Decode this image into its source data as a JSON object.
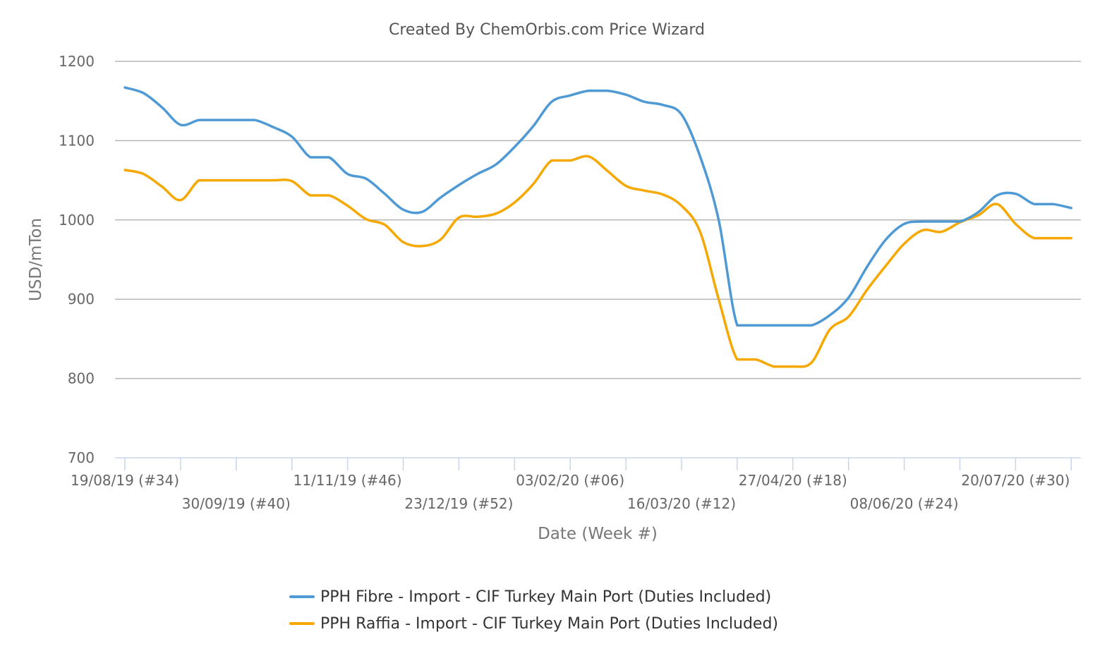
{
  "chart_data": {
    "type": "line",
    "title": "Created By ChemOrbis.com Price Wizard",
    "xlabel": "Date (Week #)",
    "ylabel": "USD/mTon",
    "ylim": [
      700,
      1200
    ],
    "yticks": [
      700,
      800,
      900,
      1000,
      1100,
      1200
    ],
    "grid": true,
    "legend_position": "bottom-center",
    "x_start_week_label": "19/08/19 (#34)",
    "x_labels": [
      {
        "week": 0,
        "label": "19/08/19 (#34)",
        "row": 1
      },
      {
        "week": 6,
        "label": "30/09/19 (#40)",
        "row": 2
      },
      {
        "week": 12,
        "label": "11/11/19 (#46)",
        "row": 1
      },
      {
        "week": 18,
        "label": "23/12/19 (#52)",
        "row": 2
      },
      {
        "week": 24,
        "label": "03/02/20 (#06)",
        "row": 1
      },
      {
        "week": 30,
        "label": "16/03/20 (#12)",
        "row": 2
      },
      {
        "week": 36,
        "label": "27/04/20 (#18)",
        "row": 1
      },
      {
        "week": 42,
        "label": "08/06/20 (#24)",
        "row": 2
      },
      {
        "week": 48,
        "label": "20/07/20 (#30)",
        "row": 1
      }
    ],
    "x_ticks": [
      0,
      3,
      6,
      9,
      12,
      15,
      18,
      21,
      24,
      27,
      30,
      33,
      36,
      39,
      42,
      45,
      48,
      51
    ],
    "x_max": 51.5,
    "series": [
      {
        "name": "PPH Fibre - Import - CIF Turkey Main Port (Duties Included)",
        "color": "#4f9ad4",
        "points": [
          [
            0,
            1167
          ],
          [
            1,
            1160
          ],
          [
            2,
            1142
          ],
          [
            3,
            1120
          ],
          [
            4,
            1126
          ],
          [
            5,
            1126
          ],
          [
            6,
            1126
          ],
          [
            7,
            1126
          ],
          [
            8,
            1117
          ],
          [
            9,
            1105
          ],
          [
            10,
            1079
          ],
          [
            11,
            1079
          ],
          [
            12,
            1058
          ],
          [
            13,
            1052
          ],
          [
            14,
            1033
          ],
          [
            15,
            1013
          ],
          [
            16,
            1010
          ],
          [
            17,
            1028
          ],
          [
            18,
            1044
          ],
          [
            19,
            1058
          ],
          [
            20,
            1070
          ],
          [
            21,
            1092
          ],
          [
            22,
            1118
          ],
          [
            23,
            1149
          ],
          [
            24,
            1157
          ],
          [
            25,
            1163
          ],
          [
            26,
            1163
          ],
          [
            27,
            1158
          ],
          [
            28,
            1149
          ],
          [
            29,
            1145
          ],
          [
            30,
            1133
          ],
          [
            31,
            1080
          ],
          [
            32,
            1000
          ],
          [
            33,
            867
          ],
          [
            34,
            867
          ],
          [
            35,
            867
          ],
          [
            36,
            867
          ],
          [
            37,
            867
          ],
          [
            38,
            880
          ],
          [
            39,
            902
          ],
          [
            40,
            941
          ],
          [
            41,
            975
          ],
          [
            42,
            995
          ],
          [
            43,
            998
          ],
          [
            44,
            998
          ],
          [
            45,
            998
          ],
          [
            46,
            1010
          ],
          [
            47,
            1031
          ],
          [
            48,
            1033
          ],
          [
            49,
            1020
          ],
          [
            50,
            1020
          ],
          [
            51,
            1015
          ]
        ]
      },
      {
        "name": "PPH Raffia - Import - CIF Turkey Main Port (Duties Included)",
        "color": "#f5a800",
        "points": [
          [
            0,
            1063
          ],
          [
            1,
            1058
          ],
          [
            2,
            1042
          ],
          [
            3,
            1025
          ],
          [
            4,
            1050
          ],
          [
            5,
            1050
          ],
          [
            6,
            1050
          ],
          [
            7,
            1050
          ],
          [
            8,
            1050
          ],
          [
            9,
            1049
          ],
          [
            10,
            1031
          ],
          [
            11,
            1031
          ],
          [
            12,
            1018
          ],
          [
            13,
            1001
          ],
          [
            14,
            994
          ],
          [
            15,
            972
          ],
          [
            16,
            967
          ],
          [
            17,
            975
          ],
          [
            18,
            1003
          ],
          [
            19,
            1004
          ],
          [
            20,
            1008
          ],
          [
            21,
            1022
          ],
          [
            22,
            1045
          ],
          [
            23,
            1075
          ],
          [
            24,
            1075
          ],
          [
            25,
            1080
          ],
          [
            26,
            1062
          ],
          [
            27,
            1043
          ],
          [
            28,
            1037
          ],
          [
            29,
            1032
          ],
          [
            30,
            1018
          ],
          [
            31,
            985
          ],
          [
            32,
            900
          ],
          [
            33,
            824
          ],
          [
            34,
            824
          ],
          [
            35,
            815
          ],
          [
            36,
            815
          ],
          [
            37,
            820
          ],
          [
            38,
            862
          ],
          [
            39,
            878
          ],
          [
            40,
            912
          ],
          [
            41,
            942
          ],
          [
            42,
            970
          ],
          [
            43,
            987
          ],
          [
            44,
            985
          ],
          [
            45,
            997
          ],
          [
            46,
            1006
          ],
          [
            47,
            1020
          ],
          [
            48,
            995
          ],
          [
            49,
            977
          ],
          [
            50,
            977
          ],
          [
            51,
            977
          ]
        ]
      }
    ]
  }
}
